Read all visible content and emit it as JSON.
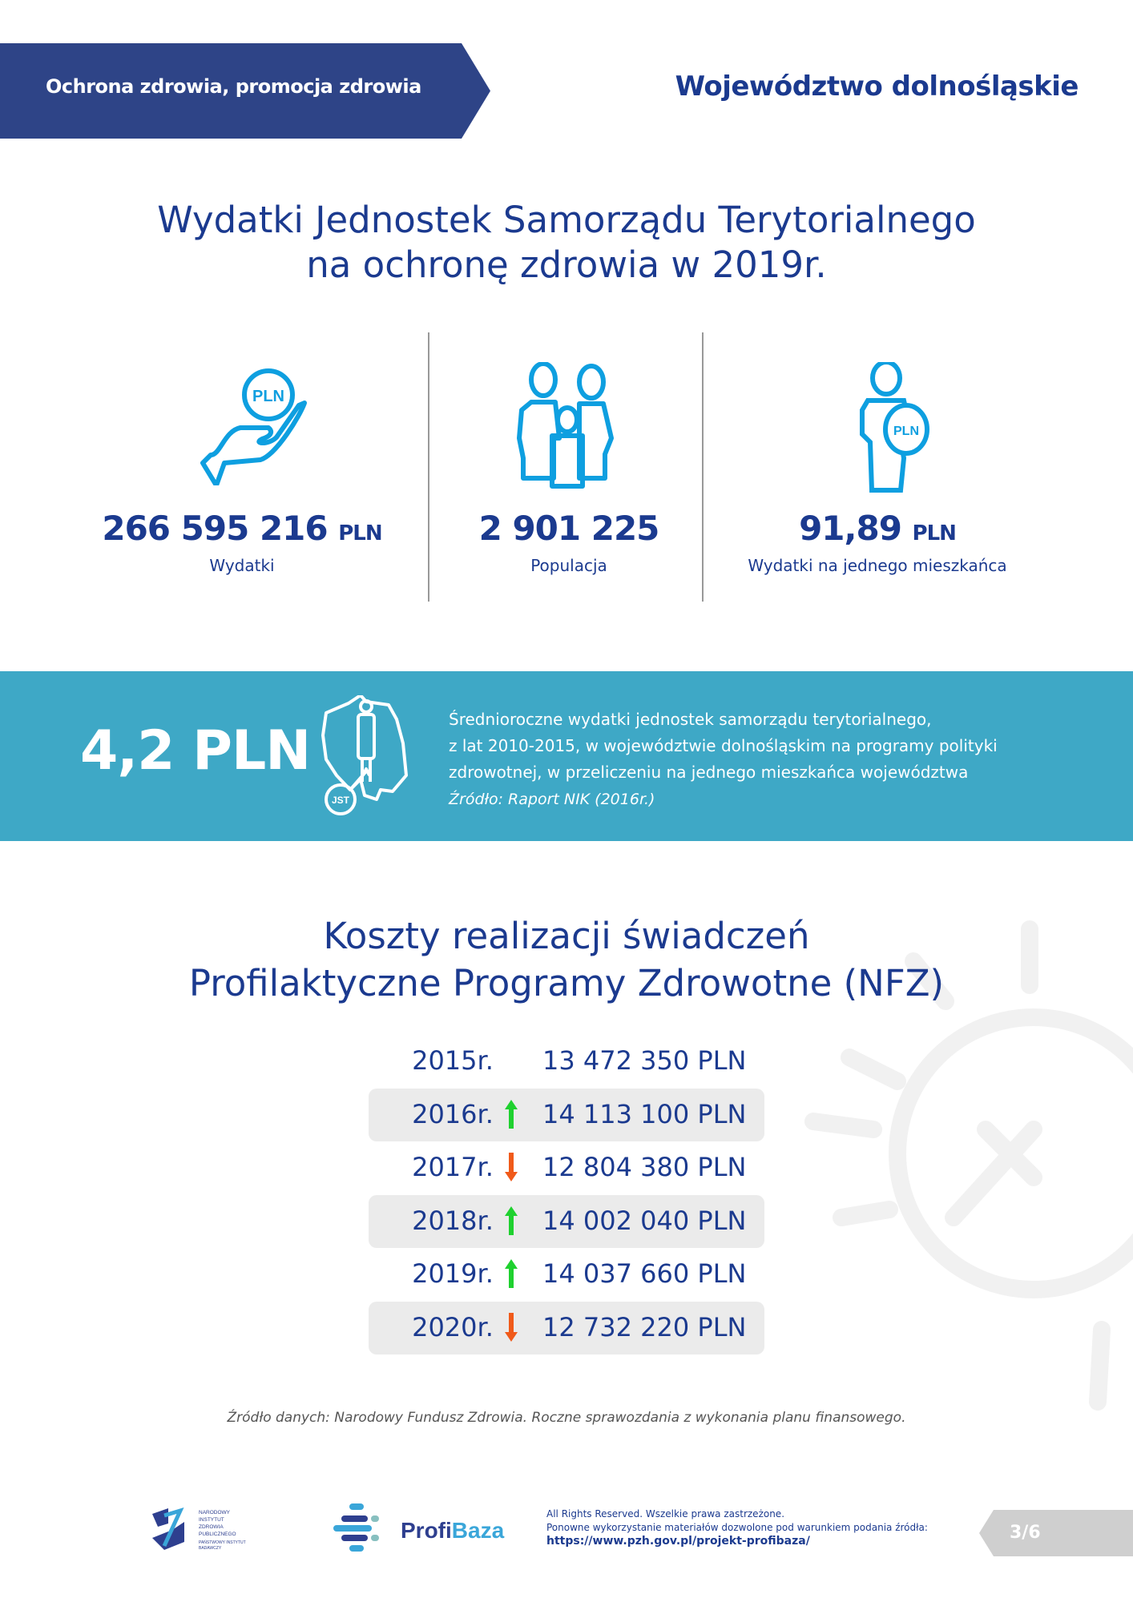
{
  "header": {
    "category": "Ochrona zdrowia, promocja zdrowia",
    "region": "Województwo dolnośląskie"
  },
  "section1": {
    "title_line1": "Wydatki Jednostek Samorządu Terytorialnego",
    "title_line2": "na ochronę zdrowia w 2019r.",
    "stats": [
      {
        "icon": "hand-coin-icon",
        "value": "266 595 216",
        "unit": "PLN",
        "label": "Wydatki"
      },
      {
        "icon": "family-icon",
        "value": "2 901 225",
        "unit": "",
        "label": "Populacja"
      },
      {
        "icon": "person-coin-icon",
        "value": "91,89",
        "unit": "PLN",
        "label": "Wydatki na jednego mieszkańca"
      }
    ]
  },
  "banner": {
    "value": "4,2 PLN",
    "icon_label": "JST",
    "line1": "Średnioroczne wydatki jednostek samorządu terytorialnego,",
    "line2": "z lat 2010-2015, w województwie dolnośląskim na programy polityki",
    "line3": "zdrowotnej, w przeliczeniu na jednego mieszkańca województwa",
    "source": "Źródło: Raport NIK (2016r.)",
    "color": "#3ea8c6"
  },
  "section2": {
    "title_line1": "Koszty realizacji świadczeń",
    "title_line2": "Profilaktyczne Programy Zdrowotne (NFZ)",
    "rows": [
      {
        "year": "2015r.",
        "trend": "",
        "value": "13 472 350 PLN"
      },
      {
        "year": "2016r.",
        "trend": "up",
        "value": "14 113 100 PLN"
      },
      {
        "year": "2017r.",
        "trend": "down",
        "value": "12 804 380 PLN"
      },
      {
        "year": "2018r.",
        "trend": "up",
        "value": "14 002 040 PLN"
      },
      {
        "year": "2019r.",
        "trend": "up",
        "value": "14 037 660 PLN"
      },
      {
        "year": "2020r.",
        "trend": "down",
        "value": "12 732 220 PLN"
      }
    ],
    "source": "Źródło danych: Narodowy Fundusz Zdrowia. Roczne sprawozdania z wykonania planu finansowego.",
    "colors": {
      "up": "#1fd12f",
      "down": "#f05a1a"
    }
  },
  "footer": {
    "nizp_logo": "NARODOWY INSTYTUT ZDROWIA PUBLICZNEGO PAŃSTWOWY INSTYTUT BADAWCZY",
    "profibaza_logo": "ProfiBaza",
    "rights": "All Rights Reserved. Wszelkie prawa zastrzeżone.",
    "reuse": "Ponowne wykorzystanie materiałów dozwolone pod warunkiem podania źródła:",
    "url": "https://www.pzh.gov.pl/projekt-profibaza/",
    "page": "3/6"
  }
}
